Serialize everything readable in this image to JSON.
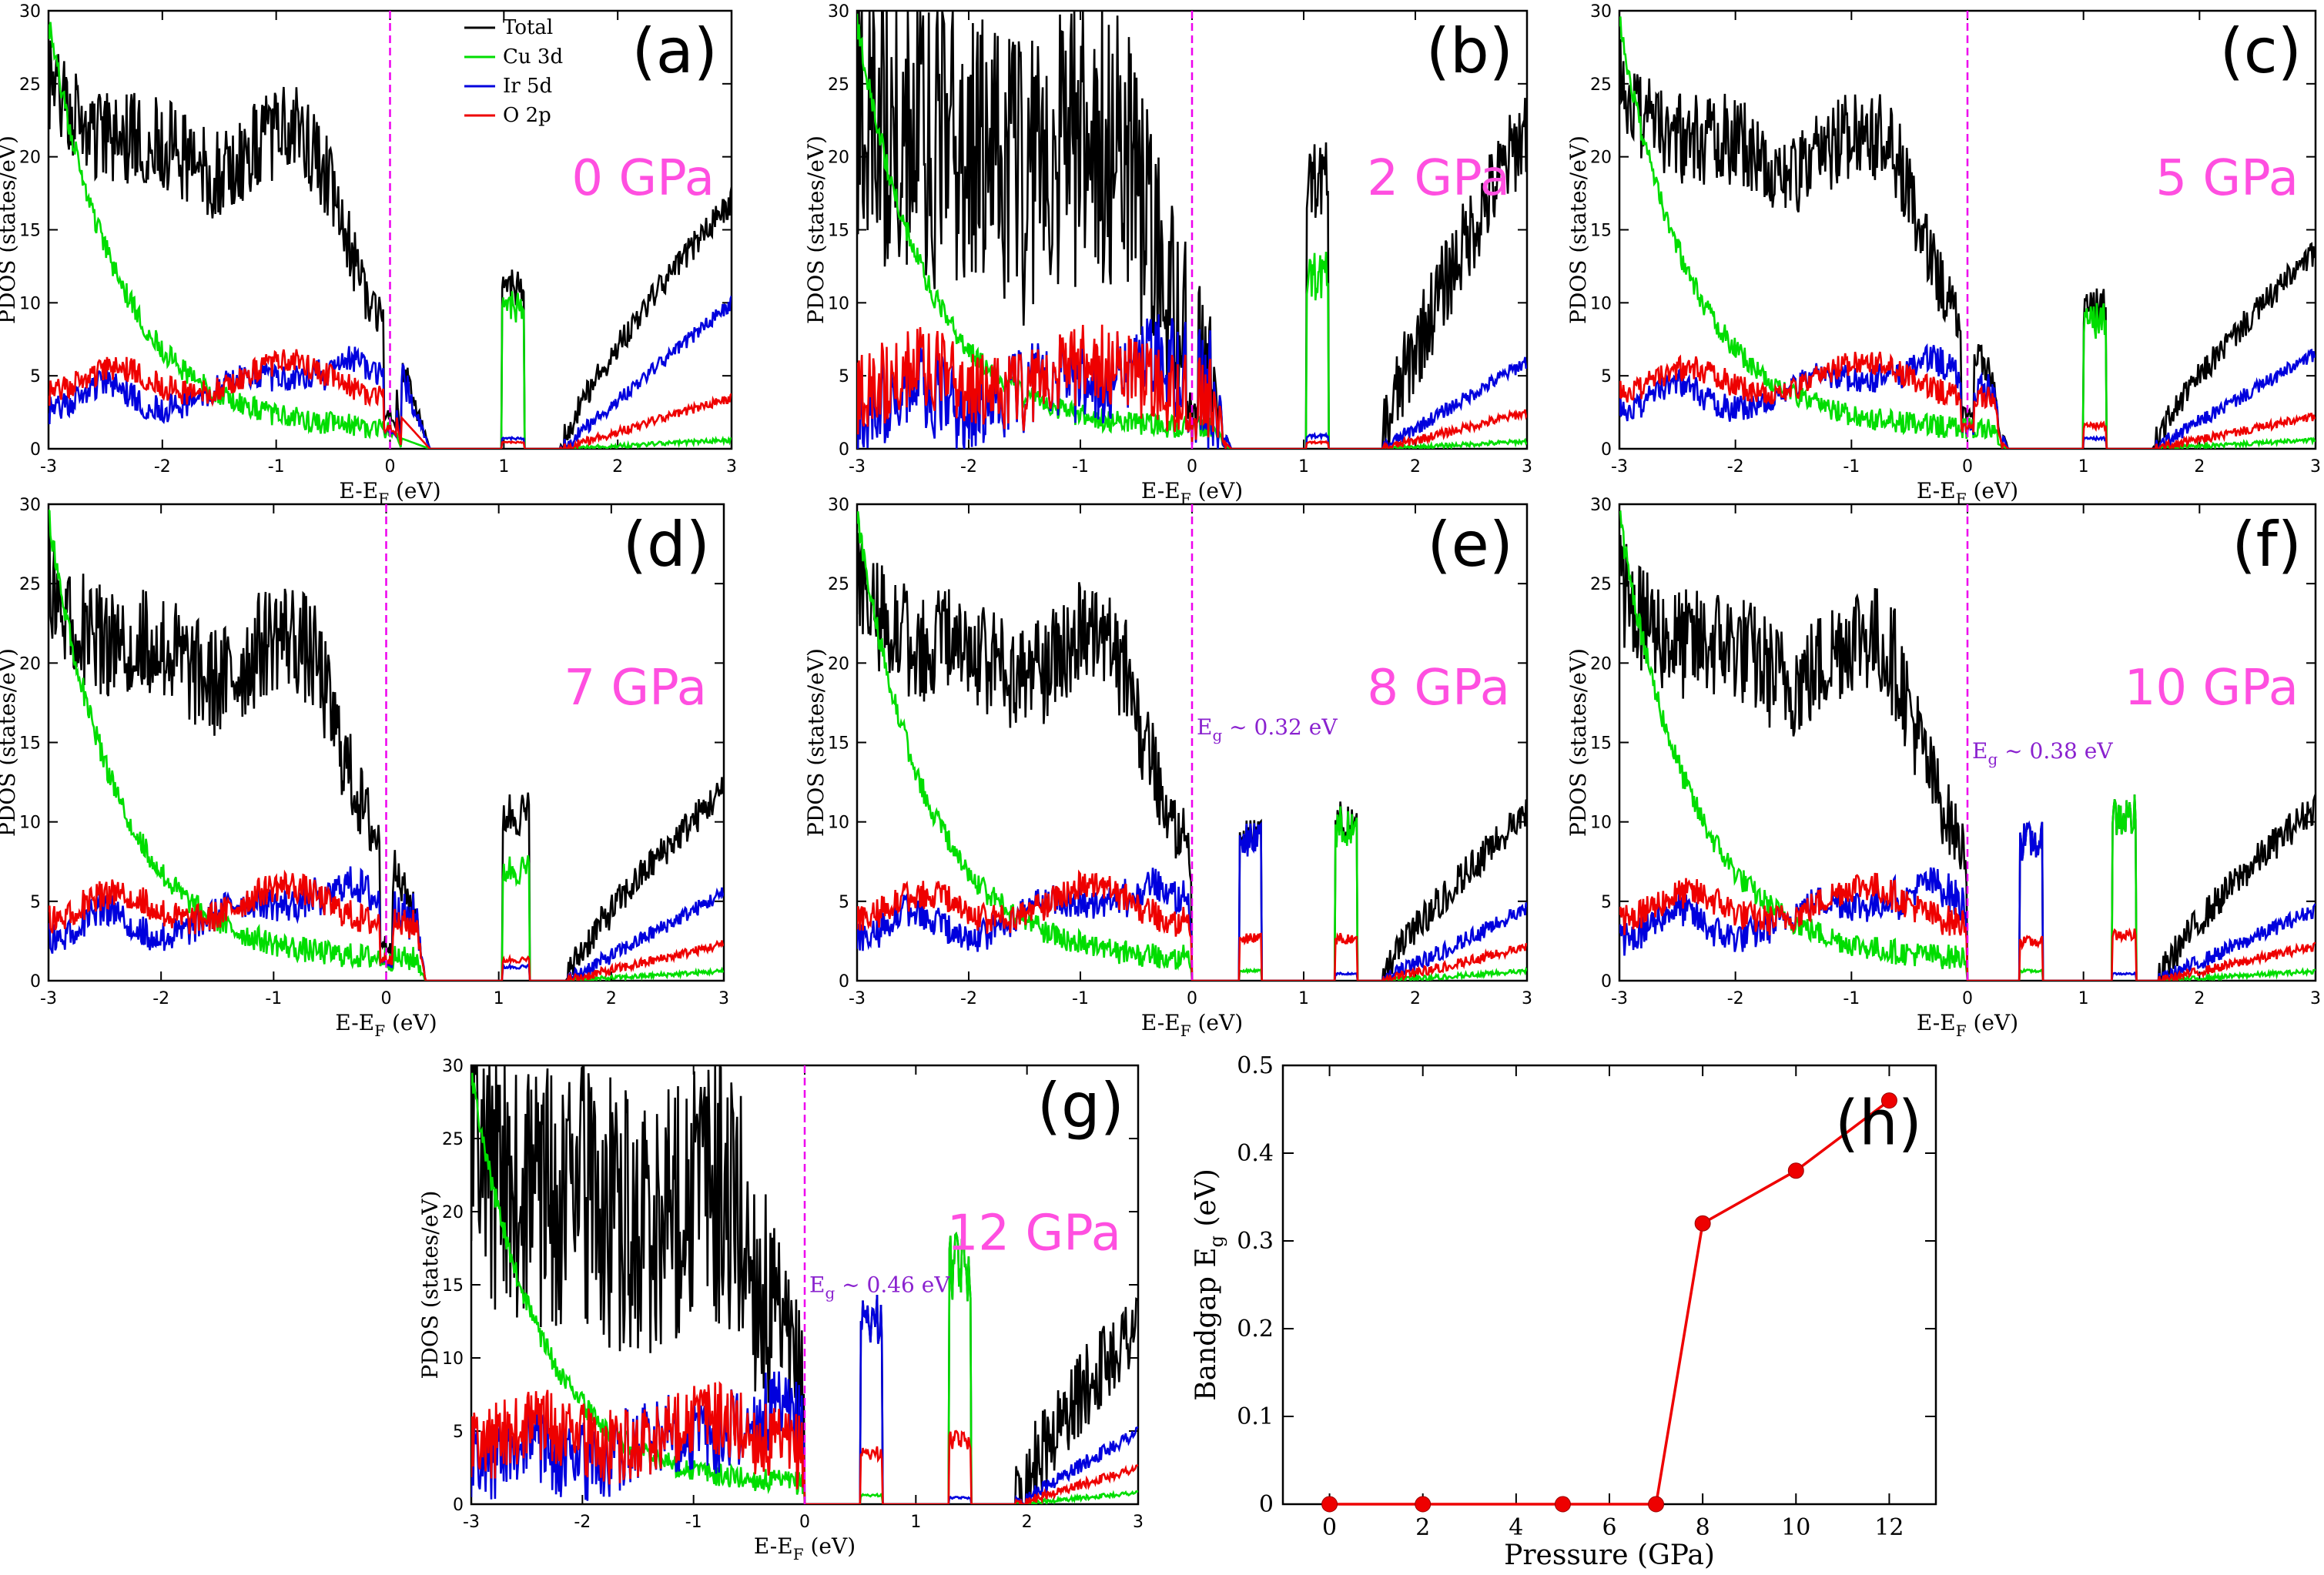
{
  "colors": {
    "total": "#000000",
    "cu": "#00dd00",
    "ir": "#0000dd",
    "o": "#ee0000",
    "fermi": "#ee00ee",
    "pressure": "#ff4fe0",
    "gap": "#8a22cf",
    "bandgap": "#ee0000"
  },
  "legend": [
    {
      "label": "Total",
      "key": "total"
    },
    {
      "label": "Cu 3d",
      "key": "cu"
    },
    {
      "label": "Ir 5d",
      "key": "ir"
    },
    {
      "label": "O 2p",
      "key": "o"
    }
  ],
  "chart_data": [
    {
      "id": "a",
      "type": "line",
      "label": "(a)",
      "pressure": "0 GPa",
      "ylabel": "PDOS (states/eV)",
      "xlabel": "E-E",
      "xlabel_sub": "F",
      "xlabel_tail": " (eV)",
      "xlim": [
        -3,
        3
      ],
      "ylim": [
        0,
        30
      ],
      "xticks": [
        "-3",
        "-2",
        "-1",
        "0",
        "1",
        "2",
        "3"
      ],
      "yticks": [
        "0",
        "5",
        "10",
        "15",
        "20",
        "25",
        "30"
      ],
      "gap_start": 0.1,
      "gap_end": 0.95,
      "cb_start": 1.5,
      "valley": 0,
      "gap": null,
      "cond_peaks": [
        {
          "center": 1.08,
          "width": 0.1,
          "total": 12.5,
          "cu": 11,
          "ir": 0.8,
          "o": 0.5
        }
      ],
      "high": {
        "total": 17,
        "cu": 0.6,
        "ir": 10,
        "o": 3.5
      },
      "noise": 0.8,
      "seed": 1
    },
    {
      "id": "b",
      "type": "line",
      "label": "(b)",
      "pressure": "2 GPa",
      "ylabel": "PDOS (states/eV)",
      "xlabel": "E-E",
      "xlabel_sub": "F",
      "xlabel_tail": " (eV)",
      "xlim": [
        -3,
        3
      ],
      "ylim": [
        0,
        30
      ],
      "xticks": [
        "-3",
        "-2",
        "-1",
        "0",
        "1",
        "2",
        "3"
      ],
      "yticks": [
        "0",
        "5",
        "10",
        "15",
        "20",
        "25",
        "30"
      ],
      "gap_start": 0.3,
      "gap_end": 0.95,
      "cb_start": 1.7,
      "valley": 0,
      "gap": null,
      "cond_peaks": [
        {
          "center": 1.12,
          "width": 0.1,
          "total": 21,
          "cu": 13.5,
          "ir": 1,
          "o": 0.5
        }
      ],
      "high": {
        "total": 22,
        "cu": 0.5,
        "ir": 6,
        "o": 2.5
      },
      "noise": 2.6,
      "seed": 2
    },
    {
      "id": "c",
      "type": "line",
      "label": "(c)",
      "pressure": "5 GPa",
      "ylabel": "PDOS (states/eV)",
      "xlabel": "E-E",
      "xlabel_sub": "F",
      "xlabel_tail": " (eV)",
      "xlim": [
        -3,
        3
      ],
      "ylim": [
        0,
        30
      ],
      "xticks": [
        "-3",
        "-2",
        "-1",
        "0",
        "1",
        "2",
        "3"
      ],
      "yticks": [
        "0",
        "5",
        "10",
        "15",
        "20",
        "25",
        "30"
      ],
      "gap_start": 0.3,
      "gap_end": 0.95,
      "cb_start": 1.6,
      "valley": 0,
      "gap": null,
      "cond_peaks": [
        {
          "center": 1.1,
          "width": 0.1,
          "total": 11,
          "cu": 10,
          "ir": 0.8,
          "o": 1.8
        }
      ],
      "high": {
        "total": 13.5,
        "cu": 0.6,
        "ir": 6.5,
        "o": 2.2
      },
      "noise": 0.8,
      "seed": 3
    },
    {
      "id": "d",
      "type": "line",
      "label": "(d)",
      "pressure": "7 GPa",
      "ylabel": "PDOS (states/eV)",
      "xlabel": "E-E",
      "xlabel_sub": "F",
      "xlabel_tail": " (eV)",
      "xlim": [
        -3,
        3
      ],
      "ylim": [
        0,
        30
      ],
      "xticks": [
        "-3",
        "-2",
        "-1",
        "0",
        "1",
        "2",
        "3"
      ],
      "yticks": [
        "0",
        "5",
        "10",
        "15",
        "20",
        "25",
        "30"
      ],
      "gap_start": 0.35,
      "gap_end": 0.9,
      "cb_start": 1.6,
      "valley": 0,
      "gap": null,
      "cond_peaks": [
        {
          "center": 1.15,
          "width": 0.12,
          "total": 12,
          "cu": 8,
          "ir": 1,
          "o": 1.5
        }
      ],
      "high": {
        "total": 12,
        "cu": 0.6,
        "ir": 5.5,
        "o": 2.3
      },
      "noise": 0.9,
      "seed": 4
    },
    {
      "id": "e",
      "type": "line",
      "label": "(e)",
      "pressure": "8 GPa",
      "ylabel": "PDOS (states/eV)",
      "xlabel": "E-E",
      "xlabel_sub": "F",
      "xlabel_tail": " (eV)",
      "xlim": [
        -3,
        3
      ],
      "ylim": [
        0,
        30
      ],
      "xticks": [
        "-3",
        "-2",
        "-1",
        "0",
        "1",
        "2",
        "3"
      ],
      "yticks": [
        "0",
        "5",
        "10",
        "15",
        "20",
        "25",
        "30"
      ],
      "gap_start": 0,
      "gap_end": 0.32,
      "cb_start": 1.7,
      "valley": null,
      "gap": {
        "label": "E",
        "sub": "g",
        "tail": " ~ 0.32 eV",
        "y": 15.5
      },
      "cond_peaks": [
        {
          "center": 0.52,
          "width": 0.1,
          "total": 10.2,
          "cu": 0.7,
          "ir": 10,
          "o": 3
        },
        {
          "center": 1.38,
          "width": 0.1,
          "total": 11.3,
          "cu": 11,
          "ir": 0.5,
          "o": 3
        }
      ],
      "high": {
        "total": 10.5,
        "cu": 0.6,
        "ir": 4.5,
        "o": 2.1
      },
      "noise": 0.9,
      "seed": 5
    },
    {
      "id": "f",
      "type": "line",
      "label": "(f)",
      "pressure": "10 GPa",
      "ylabel": "PDOS (states/eV)",
      "xlabel": "E-E",
      "xlabel_sub": "F",
      "xlabel_tail": " (eV)",
      "xlim": [
        -3,
        3
      ],
      "ylim": [
        0,
        30
      ],
      "xticks": [
        "-3",
        "-2",
        "-1",
        "0",
        "1",
        "2",
        "3"
      ],
      "yticks": [
        "0",
        "5",
        "10",
        "15",
        "20",
        "25",
        "30"
      ],
      "gap_start": 0,
      "gap_end": 0.38,
      "cb_start": 1.65,
      "valley": null,
      "gap": {
        "label": "E",
        "sub": "g",
        "tail": " ~ 0.38 eV",
        "y": 14
      },
      "cond_peaks": [
        {
          "center": 0.55,
          "width": 0.1,
          "total": 10,
          "cu": 0.7,
          "ir": 10,
          "o": 2.8
        },
        {
          "center": 1.35,
          "width": 0.1,
          "total": 11.8,
          "cu": 11.8,
          "ir": 0.5,
          "o": 3.3
        }
      ],
      "high": {
        "total": 11,
        "cu": 0.6,
        "ir": 4.5,
        "o": 2.2
      },
      "noise": 0.9,
      "seed": 6
    },
    {
      "id": "g",
      "type": "line",
      "label": "(g)",
      "pressure": "12 GPa",
      "ylabel": "PDOS (states/eV)",
      "xlabel": "E-E",
      "xlabel_sub": "F",
      "xlabel_tail": " (eV)",
      "xlim": [
        -3,
        3
      ],
      "ylim": [
        0,
        30
      ],
      "xticks": [
        "-3",
        "-2",
        "-1",
        "0",
        "1",
        "2",
        "3"
      ],
      "yticks": [
        "0",
        "5",
        "10",
        "15",
        "20",
        "25",
        "30"
      ],
      "gap_start": 0,
      "gap_end": 0.46,
      "cb_start": 1.9,
      "valley": null,
      "gap": {
        "label": "E",
        "sub": "g",
        "tail": " ~ 0.46 eV",
        "y": 14.5
      },
      "cond_peaks": [
        {
          "center": 0.6,
          "width": 0.1,
          "total": 14.5,
          "cu": 0.7,
          "ir": 14.5,
          "o": 4
        },
        {
          "center": 1.4,
          "width": 0.1,
          "total": 18.5,
          "cu": 18.5,
          "ir": 0.5,
          "o": 5
        }
      ],
      "high": {
        "total": 12.5,
        "cu": 0.8,
        "ir": 5,
        "o": 2.5
      },
      "noise": 2.4,
      "seed": 7
    },
    {
      "id": "h",
      "type": "scatter",
      "label": "(h)",
      "xlabel": "Pressure (GPa)",
      "ylabel": "Bandgap E",
      "ylabel_sub": "g",
      "ylabel_tail": " (eV)",
      "xlim": [
        -1,
        13
      ],
      "ylim": [
        0,
        0.5
      ],
      "xticks": [
        "0",
        "2",
        "4",
        "6",
        "8",
        "10",
        "12"
      ],
      "yticks": [
        "0",
        "0.1",
        "0.2",
        "0.3",
        "0.4",
        "0.5"
      ],
      "x": [
        0,
        2,
        5,
        7,
        8,
        10,
        12
      ],
      "y": [
        0,
        0,
        0,
        0,
        0.32,
        0.38,
        0.46
      ]
    }
  ]
}
